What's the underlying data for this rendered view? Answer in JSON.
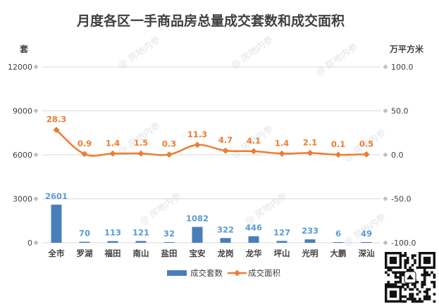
{
  "chart_data": {
    "type": "bar+line",
    "title": "月度各区一手商品房总量成交套数和成交面积",
    "categories": [
      "全市",
      "罗湖",
      "福田",
      "南山",
      "盐田",
      "宝安",
      "龙岗",
      "龙华",
      "坪山",
      "光明",
      "大鹏",
      "深汕"
    ],
    "series": [
      {
        "name": "成交套数",
        "type": "bar",
        "axis": "left",
        "color": "#4a7ebb",
        "values": [
          2601,
          70,
          113,
          121,
          32,
          1082,
          322,
          446,
          127,
          233,
          6,
          49
        ]
      },
      {
        "name": "成交面积",
        "type": "line",
        "axis": "right",
        "color": "#ed7d31",
        "values": [
          28.3,
          0.9,
          1.4,
          1.5,
          0.3,
          11.3,
          4.7,
          4.1,
          1.4,
          2.1,
          0.1,
          0.5
        ]
      }
    ],
    "y_left": {
      "unit": "套",
      "ylim": [
        0,
        12000
      ],
      "ticks": [
        0,
        3000,
        6000,
        9000,
        12000
      ],
      "tick_labels": [
        "0",
        "3000",
        "6000",
        "9000",
        "12000"
      ]
    },
    "y_right": {
      "unit": "万平方米",
      "ylim": [
        -100,
        100
      ],
      "ticks": [
        -100,
        -50,
        0,
        50,
        100
      ],
      "tick_labels": [
        "-100.0",
        "-50.0",
        "0.0",
        "50.0",
        "100.0"
      ]
    },
    "grid": true,
    "legend": "bottom"
  },
  "watermark": {
    "text": "@ 房地内参"
  }
}
